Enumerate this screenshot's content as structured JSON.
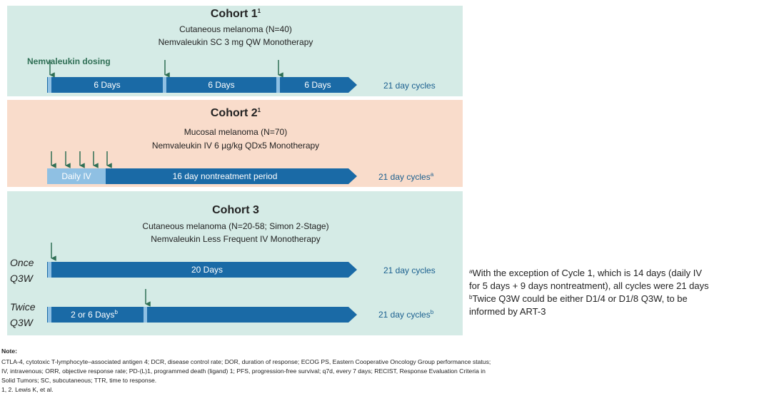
{
  "cohorts": [
    {
      "title": "Cohort 1",
      "title_sup": "1",
      "lines": [
        "Cutaneous melanoma (N=40)",
        "Nemvaleukin SC 3 mg QW Monotherapy"
      ],
      "dosing_label": "Nemvaleukin dosing",
      "segments": [
        "6 Days",
        "6 Days",
        "6 Days"
      ],
      "cycle": "21 day cycles"
    },
    {
      "title": "Cohort 2",
      "title_sup": "1",
      "lines": [
        "Mucosal melanoma (N=70)",
        "Nemvaleukin IV 6 µg/kg QDx5 Monotherapy"
      ],
      "segments": [
        "Daily IV",
        "16 day nontreatment period"
      ],
      "cycle": "21 day cycles",
      "cycle_sup": "a"
    },
    {
      "title": "Cohort 3",
      "lines": [
        "Cutaneous melanoma (N=20-58; Simon 2-Stage)",
        "Nemvaleukin Less Frequent IV Monotherapy"
      ],
      "arms": [
        {
          "name": [
            "Once",
            "Q3W"
          ],
          "segment": "20 Days",
          "cycle": "21 day cycles"
        },
        {
          "name": [
            "Twice",
            "Q3W"
          ],
          "segment": "2 or 6 Days",
          "segment_sup": "b",
          "cycle": "21 day cycles",
          "cycle_sup": "b"
        }
      ]
    }
  ],
  "footnotes": [
    {
      "sup": "a",
      "lines": [
        "With the exception of Cycle 1, which is 14 days (daily IV",
        "for 5 days + 9 days nontreatment), all cycles were 21 days"
      ]
    },
    {
      "sup": "b",
      "lines": [
        "Twice Q3W could be either D1/4 or D1/8 Q3W, to be",
        "informed by ART-3"
      ]
    }
  ],
  "note": {
    "heading": "Note:",
    "lines": [
      "CTLA-4, cytotoxic T-lymphocyte–associated antigen 4; DCR, disease control rate; DOR, duration of response; ECOG PS, Eastern Cooperative Oncology Group performance status;",
      "IV, intravenous; ORR, objective response rate; PD-(L)1, programmed death (ligand) 1; PFS, progression-free survival; q7d, every 7 days; RECIST, Response Evaluation Criteria in",
      "Solid Tumors; SC, subcutaneous; TTR, time to response."
    ],
    "reference": "1, 2. Lewis K, et al."
  }
}
